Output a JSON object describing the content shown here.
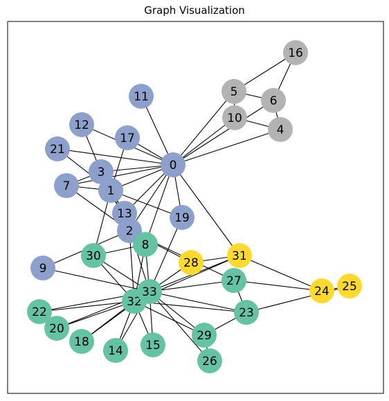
{
  "title": "Graph Visualization",
  "colors": {
    "blue": "#8da0cb",
    "green": "#66c2a5",
    "gray": "#b3b3b3",
    "yellow": "#ffd92f",
    "edge": "#000000",
    "frame": "#000000"
  },
  "graph": {
    "nodes": [
      {
        "id": 0,
        "label": "0",
        "group": "blue"
      },
      {
        "id": 1,
        "label": "1",
        "group": "blue"
      },
      {
        "id": 2,
        "label": "2",
        "group": "blue"
      },
      {
        "id": 3,
        "label": "3",
        "group": "blue"
      },
      {
        "id": 4,
        "label": "4",
        "group": "gray"
      },
      {
        "id": 5,
        "label": "5",
        "group": "gray"
      },
      {
        "id": 6,
        "label": "6",
        "group": "gray"
      },
      {
        "id": 7,
        "label": "7",
        "group": "blue"
      },
      {
        "id": 8,
        "label": "8",
        "group": "green"
      },
      {
        "id": 9,
        "label": "9",
        "group": "blue"
      },
      {
        "id": 10,
        "label": "10",
        "group": "gray"
      },
      {
        "id": 11,
        "label": "11",
        "group": "blue"
      },
      {
        "id": 12,
        "label": "12",
        "group": "blue"
      },
      {
        "id": 13,
        "label": "13",
        "group": "blue"
      },
      {
        "id": 14,
        "label": "14",
        "group": "green"
      },
      {
        "id": 15,
        "label": "15",
        "group": "green"
      },
      {
        "id": 16,
        "label": "16",
        "group": "gray"
      },
      {
        "id": 17,
        "label": "17",
        "group": "blue"
      },
      {
        "id": 18,
        "label": "18",
        "group": "green"
      },
      {
        "id": 19,
        "label": "19",
        "group": "blue"
      },
      {
        "id": 20,
        "label": "20",
        "group": "green"
      },
      {
        "id": 21,
        "label": "21",
        "group": "blue"
      },
      {
        "id": 22,
        "label": "22",
        "group": "green"
      },
      {
        "id": 23,
        "label": "23",
        "group": "green"
      },
      {
        "id": 24,
        "label": "24",
        "group": "yellow"
      },
      {
        "id": 25,
        "label": "25",
        "group": "yellow"
      },
      {
        "id": 26,
        "label": "26",
        "group": "green"
      },
      {
        "id": 27,
        "label": "27",
        "group": "green"
      },
      {
        "id": 28,
        "label": "28",
        "group": "yellow"
      },
      {
        "id": 29,
        "label": "29",
        "group": "green"
      },
      {
        "id": 30,
        "label": "30",
        "group": "green"
      },
      {
        "id": 31,
        "label": "31",
        "group": "yellow"
      },
      {
        "id": 32,
        "label": "32",
        "group": "green"
      },
      {
        "id": 33,
        "label": "33",
        "group": "green"
      }
    ],
    "edges": [
      [
        0,
        1
      ],
      [
        0,
        2
      ],
      [
        0,
        3
      ],
      [
        0,
        4
      ],
      [
        0,
        5
      ],
      [
        0,
        6
      ],
      [
        0,
        7
      ],
      [
        0,
        8
      ],
      [
        0,
        10
      ],
      [
        0,
        11
      ],
      [
        0,
        12
      ],
      [
        0,
        13
      ],
      [
        0,
        17
      ],
      [
        0,
        19
      ],
      [
        0,
        21
      ],
      [
        0,
        31
      ],
      [
        1,
        2
      ],
      [
        1,
        3
      ],
      [
        1,
        7
      ],
      [
        1,
        13
      ],
      [
        1,
        17
      ],
      [
        1,
        19
      ],
      [
        1,
        21
      ],
      [
        1,
        30
      ],
      [
        2,
        3
      ],
      [
        2,
        7
      ],
      [
        2,
        8
      ],
      [
        2,
        9
      ],
      [
        2,
        13
      ],
      [
        2,
        27
      ],
      [
        2,
        28
      ],
      [
        2,
        32
      ],
      [
        3,
        7
      ],
      [
        3,
        12
      ],
      [
        3,
        13
      ],
      [
        4,
        6
      ],
      [
        4,
        10
      ],
      [
        5,
        6
      ],
      [
        5,
        10
      ],
      [
        5,
        16
      ],
      [
        6,
        16
      ],
      [
        8,
        30
      ],
      [
        8,
        32
      ],
      [
        8,
        33
      ],
      [
        9,
        33
      ],
      [
        13,
        33
      ],
      [
        14,
        32
      ],
      [
        14,
        33
      ],
      [
        15,
        32
      ],
      [
        15,
        33
      ],
      [
        18,
        32
      ],
      [
        18,
        33
      ],
      [
        19,
        33
      ],
      [
        20,
        32
      ],
      [
        20,
        33
      ],
      [
        22,
        32
      ],
      [
        22,
        33
      ],
      [
        23,
        25
      ],
      [
        23,
        27
      ],
      [
        23,
        29
      ],
      [
        23,
        32
      ],
      [
        23,
        33
      ],
      [
        24,
        25
      ],
      [
        24,
        27
      ],
      [
        24,
        31
      ],
      [
        26,
        29
      ],
      [
        26,
        33
      ],
      [
        27,
        33
      ],
      [
        28,
        31
      ],
      [
        28,
        33
      ],
      [
        29,
        32
      ],
      [
        29,
        33
      ],
      [
        30,
        32
      ],
      [
        30,
        33
      ],
      [
        31,
        32
      ],
      [
        31,
        33
      ],
      [
        32,
        33
      ]
    ]
  }
}
